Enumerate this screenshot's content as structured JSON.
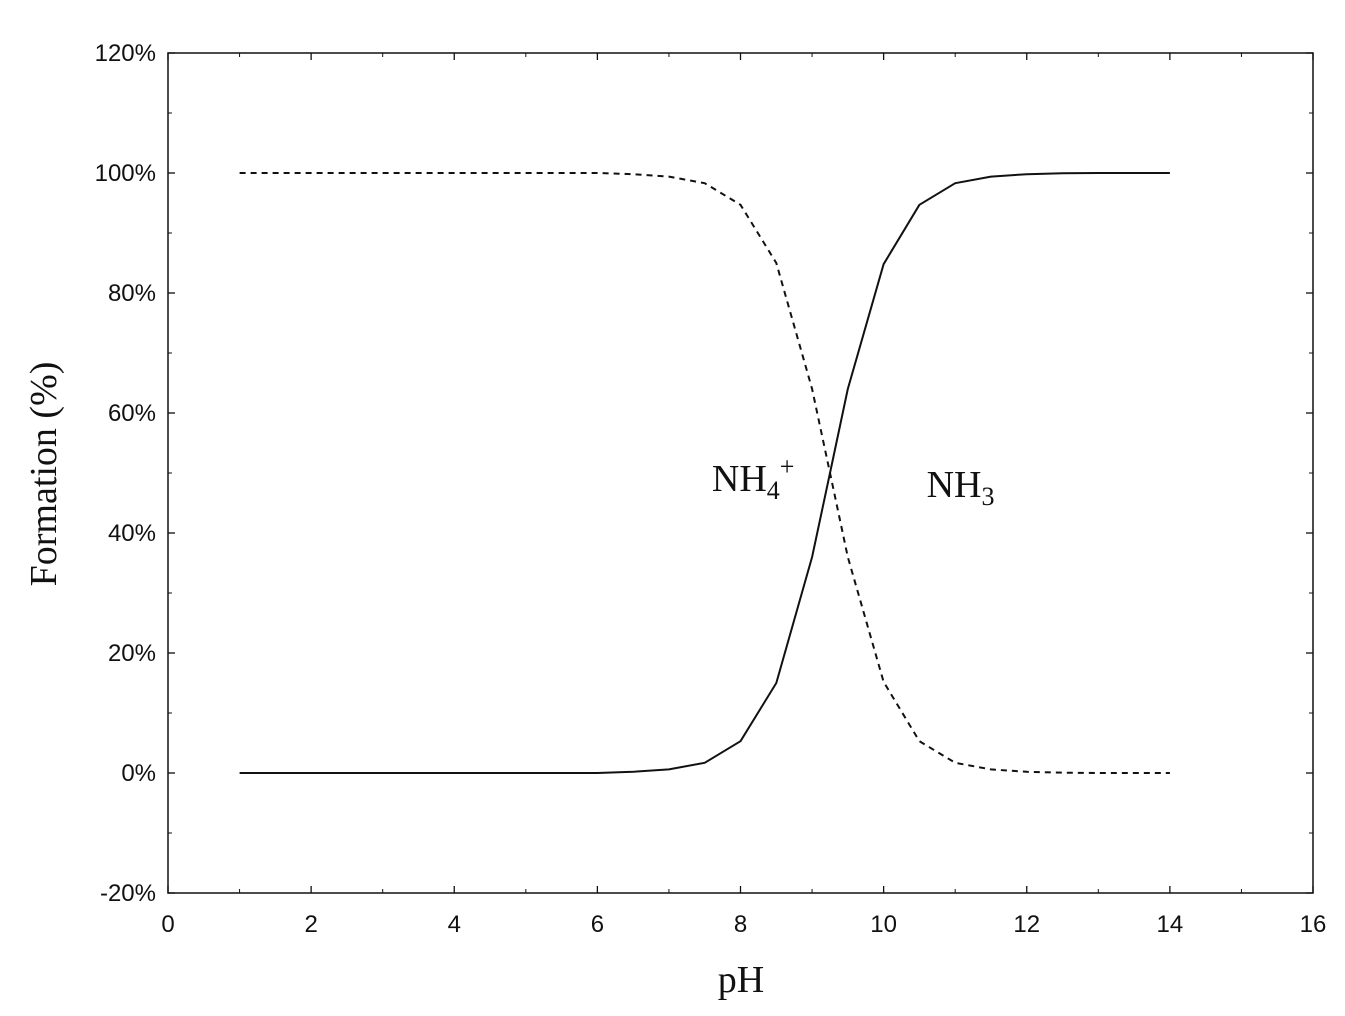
{
  "chart_data": {
    "type": "line",
    "title": "",
    "xlabel": "pH",
    "ylabel": "Formation (%)",
    "xlim": [
      0,
      16
    ],
    "ylim": [
      -20,
      120
    ],
    "xticks": [
      0,
      2,
      4,
      6,
      8,
      10,
      12,
      14,
      16
    ],
    "yticks": [
      -20,
      0,
      20,
      40,
      60,
      80,
      100,
      120
    ],
    "ytick_labels": [
      "-20%",
      "0%",
      "20%",
      "40%",
      "60%",
      "80%",
      "100%",
      "120%"
    ],
    "grid": false,
    "series": [
      {
        "style": "dashed",
        "color": "#111111",
        "x": [
          1,
          1.5,
          2,
          2.5,
          3,
          3.5,
          4,
          4.5,
          5,
          5.5,
          6,
          6.5,
          7,
          7.5,
          8,
          8.5,
          9,
          9.25,
          9.5,
          10,
          10.5,
          11,
          11.5,
          12,
          12.5,
          13,
          13.5,
          14
        ],
        "y": [
          100,
          100,
          100,
          100,
          100,
          100,
          100,
          100,
          100,
          100,
          100,
          99.8,
          99.4,
          98.3,
          94.7,
          85,
          64,
          50,
          36,
          15.2,
          5.3,
          1.7,
          0.6,
          0.2,
          0.05,
          0,
          0,
          0
        ]
      },
      {
        "style": "solid",
        "color": "#111111",
        "x": [
          1,
          1.5,
          2,
          2.5,
          3,
          3.5,
          4,
          4.5,
          5,
          5.5,
          6,
          6.5,
          7,
          7.5,
          8,
          8.5,
          9,
          9.25,
          9.5,
          10,
          10.5,
          11,
          11.5,
          12,
          12.5,
          13,
          13.5,
          14
        ],
        "y": [
          0,
          0,
          0,
          0,
          0,
          0,
          0,
          0,
          0,
          0,
          0,
          0.2,
          0.6,
          1.7,
          5.3,
          15,
          36,
          50,
          64,
          84.8,
          94.7,
          98.3,
          99.4,
          99.8,
          99.95,
          100,
          100,
          100
        ]
      }
    ],
    "annotations": [
      {
        "main": "NH",
        "sub": "4",
        "sup": "+",
        "x": 7.6,
        "y": 47
      },
      {
        "main": "NH",
        "sub": "3",
        "x": 10.6,
        "y": 46
      }
    ]
  }
}
